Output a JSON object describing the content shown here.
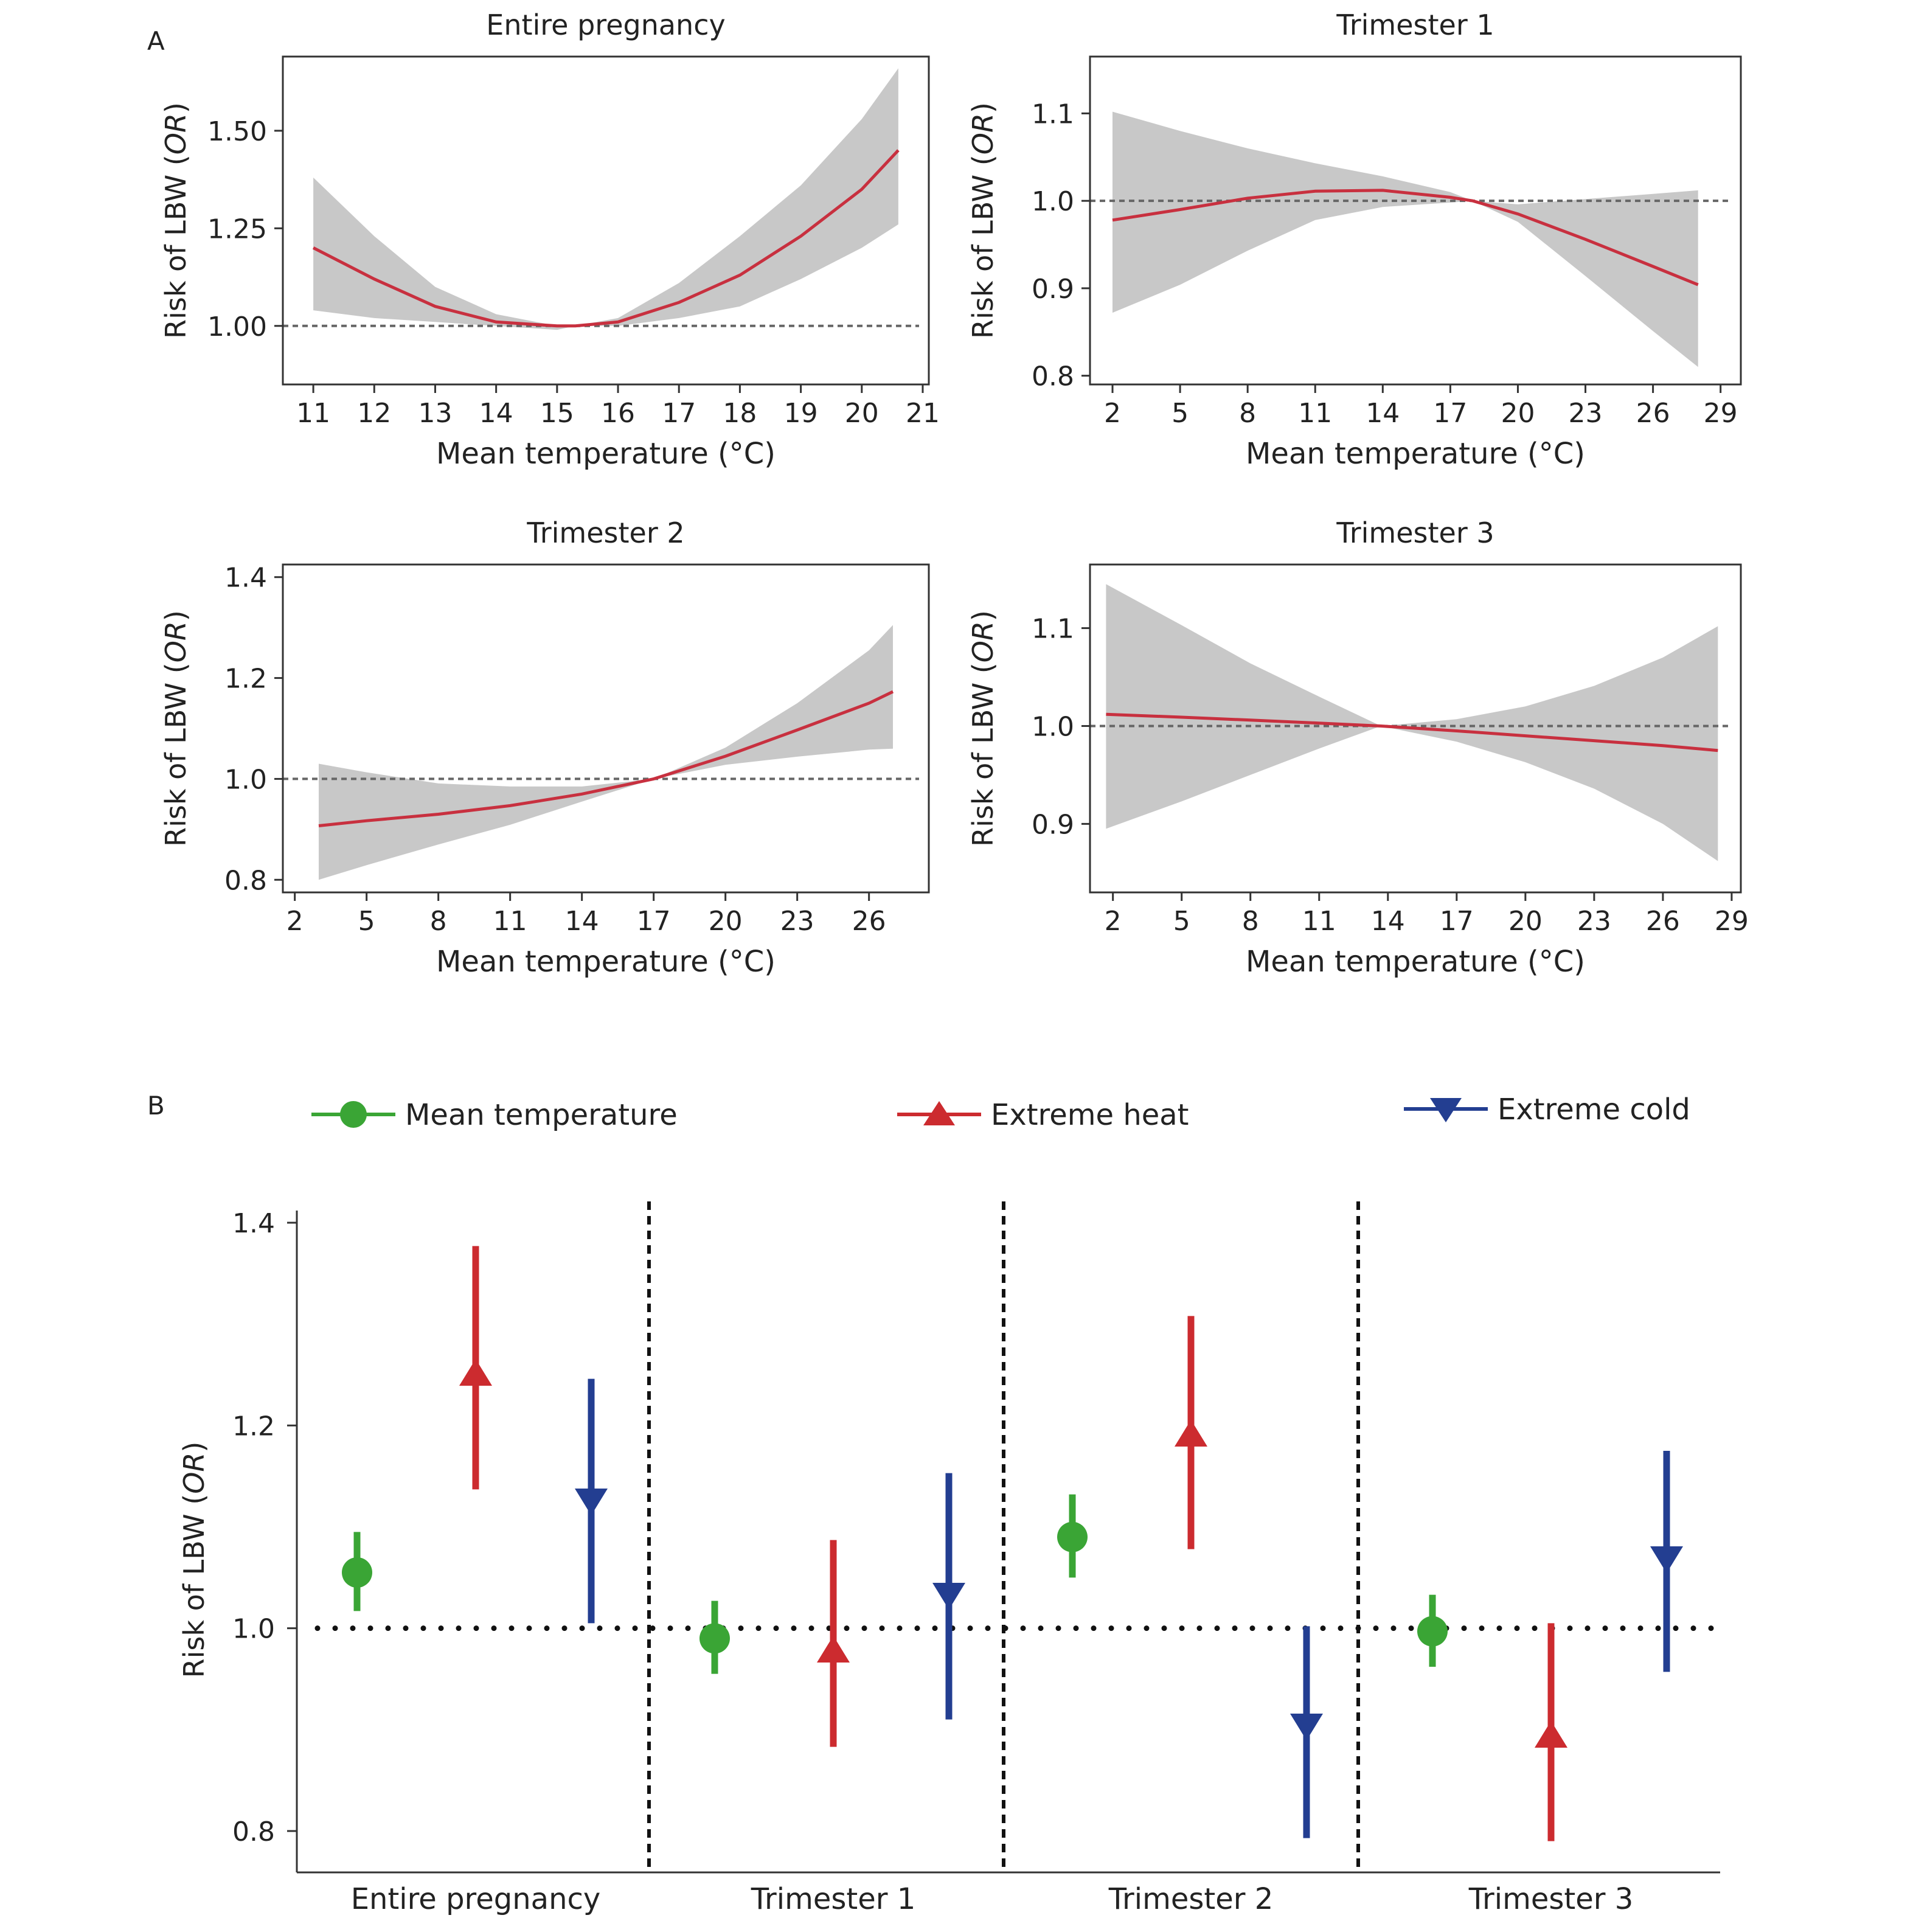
{
  "figure": {
    "panel_a_label": "A",
    "panel_b_label": "B",
    "colors": {
      "curve": "#c8303f",
      "band": "#c8c8c8",
      "reference": "#666666",
      "mean": "#3aa535",
      "heat": "#cc2b2f",
      "cold": "#233e91"
    }
  },
  "chart_data": [
    {
      "id": "a1",
      "type": "line",
      "title": "Entire pregnancy",
      "xlabel": "Mean temperature (°C)",
      "ylabel": "Risk of LBW (",
      "ylabel_italic": "OR",
      "ylabel_close": ")",
      "xlim": [
        10.5,
        21.1
      ],
      "ylim": [
        0.85,
        1.69
      ],
      "xticks": [
        11,
        12,
        13,
        14,
        15,
        16,
        17,
        18,
        19,
        20,
        21
      ],
      "yticks": [
        1.0,
        1.25,
        1.5
      ],
      "ytick_labels": [
        "1.00",
        "1.25",
        "1.50"
      ],
      "reference_line": 1.0,
      "series": [
        {
          "x": [
            11,
            12,
            13,
            14,
            15,
            15.3,
            16,
            17,
            18,
            19,
            20,
            20.6
          ],
          "y": [
            1.2,
            1.12,
            1.05,
            1.01,
            1.0,
            1.0,
            1.01,
            1.06,
            1.13,
            1.23,
            1.35,
            1.45
          ],
          "lower": [
            1.04,
            1.02,
            1.01,
            1.0,
            0.99,
            1.0,
            1.0,
            1.02,
            1.05,
            1.12,
            1.2,
            1.26
          ],
          "upper": [
            1.38,
            1.23,
            1.1,
            1.03,
            1.0,
            1.0,
            1.02,
            1.11,
            1.23,
            1.36,
            1.53,
            1.66
          ]
        }
      ]
    },
    {
      "id": "a2",
      "type": "line",
      "title": "Trimester 1",
      "xlabel": "Mean temperature (°C)",
      "ylabel": "Risk of LBW (",
      "ylabel_italic": "OR",
      "ylabel_close": ")",
      "xlim": [
        1,
        29.9
      ],
      "ylim": [
        0.79,
        1.165
      ],
      "xticks": [
        2,
        5,
        8,
        11,
        14,
        17,
        20,
        23,
        26,
        29
      ],
      "yticks": [
        0.8,
        0.9,
        1.0,
        1.1
      ],
      "ytick_labels": [
        "0.8",
        "0.9",
        "1.0",
        "1.1"
      ],
      "reference_line": 1.0,
      "series": [
        {
          "x": [
            2,
            5,
            8,
            11,
            14,
            17,
            18,
            20,
            23,
            26,
            28
          ],
          "y": [
            0.978,
            0.99,
            1.003,
            1.011,
            1.012,
            1.004,
            1.0,
            0.985,
            0.956,
            0.925,
            0.904
          ],
          "lower": [
            0.872,
            0.904,
            0.943,
            0.978,
            0.993,
            0.998,
            1.0,
            0.976,
            0.914,
            0.851,
            0.81
          ],
          "upper": [
            1.102,
            1.08,
            1.06,
            1.043,
            1.028,
            1.01,
            1.0,
            0.996,
            1.002,
            1.008,
            1.012
          ]
        }
      ]
    },
    {
      "id": "a3",
      "type": "line",
      "title": "Trimester 2",
      "xlabel": "Mean temperature (°C)",
      "ylabel": "Risk of LBW (",
      "ylabel_italic": "OR",
      "ylabel_close": ")",
      "xlim": [
        1.5,
        28.5
      ],
      "ylim": [
        0.775,
        1.425
      ],
      "xticks": [
        2,
        5,
        8,
        11,
        14,
        17,
        20,
        23,
        26
      ],
      "yticks": [
        0.8,
        1.0,
        1.2,
        1.4
      ],
      "ytick_labels": [
        "0.8",
        "1.0",
        "1.2",
        "1.4"
      ],
      "reference_line": 1.0,
      "series": [
        {
          "x": [
            3,
            5,
            8,
            11,
            14,
            17,
            20,
            23,
            26,
            27
          ],
          "y": [
            0.907,
            0.917,
            0.93,
            0.947,
            0.97,
            1.0,
            1.045,
            1.097,
            1.15,
            1.173
          ],
          "lower": [
            0.8,
            0.829,
            0.87,
            0.909,
            0.955,
            1.0,
            1.028,
            1.044,
            1.058,
            1.06
          ],
          "upper": [
            1.03,
            1.013,
            0.991,
            0.985,
            0.985,
            1.0,
            1.062,
            1.15,
            1.255,
            1.305
          ]
        }
      ]
    },
    {
      "id": "a4",
      "type": "line",
      "title": "Trimester 3",
      "xlabel": "Mean temperature (°C)",
      "ylabel": "Risk of LBW (",
      "ylabel_italic": "OR",
      "ylabel_close": ")",
      "xlim": [
        1,
        29.4
      ],
      "ylim": [
        0.83,
        1.165
      ],
      "xticks": [
        2,
        5,
        8,
        11,
        14,
        17,
        20,
        23,
        26,
        29
      ],
      "yticks": [
        0.9,
        1.0,
        1.1
      ],
      "ytick_labels": [
        "0.9",
        "1.0",
        "1.1"
      ],
      "reference_line": 1.0,
      "series": [
        {
          "x": [
            1.7,
            5,
            8,
            11,
            13.7,
            17,
            20,
            23,
            26,
            28.4
          ],
          "y": [
            1.012,
            1.009,
            1.006,
            1.003,
            1.0,
            0.995,
            0.99,
            0.985,
            0.98,
            0.975
          ],
          "lower": [
            0.895,
            0.923,
            0.95,
            0.977,
            1.0,
            0.984,
            0.963,
            0.936,
            0.9,
            0.862
          ],
          "upper": [
            1.145,
            1.103,
            1.064,
            1.03,
            1.0,
            1.007,
            1.02,
            1.041,
            1.07,
            1.102
          ]
        }
      ]
    },
    {
      "id": "b",
      "type": "scatter",
      "ylabel": "Risk of LBW (",
      "ylabel_italic": "OR",
      "ylabel_close": ")",
      "ylim": [
        0.78,
        1.405
      ],
      "yticks": [
        0.8,
        1.0,
        1.2,
        1.4
      ],
      "ytick_labels": [
        "0.8",
        "1.0",
        "1.2",
        "1.4"
      ],
      "reference_line": 1.0,
      "categories": [
        "Entire pregnancy",
        "Trimester 1",
        "Trimester 2",
        "Trimester 3"
      ],
      "legend": [
        "Mean temperature",
        "Extreme heat",
        "Extreme cold"
      ],
      "series": [
        {
          "name": "Mean temperature",
          "marker": "circle",
          "values": [
            1.055,
            0.99,
            1.09,
            0.997
          ],
          "lower": [
            1.017,
            0.955,
            1.05,
            0.962
          ],
          "upper": [
            1.095,
            1.027,
            1.132,
            1.033
          ]
        },
        {
          "name": "Extreme heat",
          "marker": "triangle-up",
          "values": [
            1.25,
            0.977,
            1.19,
            0.893
          ],
          "lower": [
            1.137,
            0.883,
            1.078,
            0.79
          ],
          "upper": [
            1.377,
            1.087,
            1.308,
            1.005
          ]
        },
        {
          "name": "Extreme cold",
          "marker": "triangle-down",
          "values": [
            1.127,
            1.034,
            0.905,
            1.07
          ],
          "lower": [
            1.005,
            0.91,
            0.793,
            0.957
          ],
          "upper": [
            1.246,
            1.153,
            1.002,
            1.175
          ]
        }
      ]
    }
  ]
}
